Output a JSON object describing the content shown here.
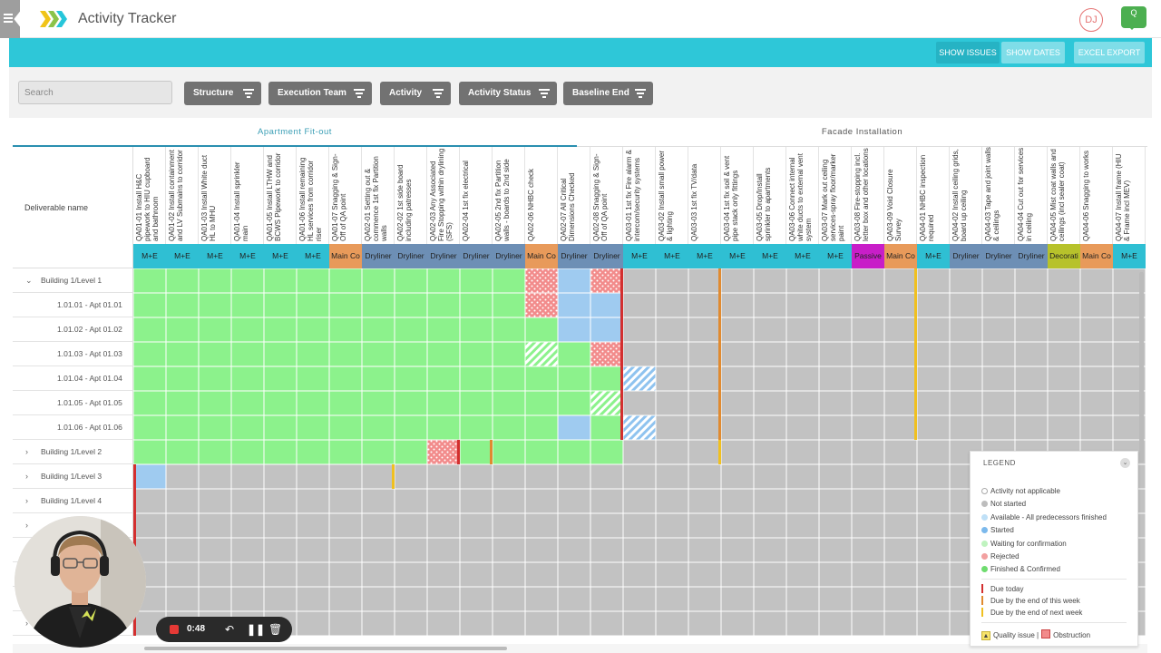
{
  "app": {
    "title": "Activity Tracker",
    "user_initials": "DJ",
    "chat_badge": "Q"
  },
  "toolbar": {
    "show_issues": "SHOW ISSUES",
    "show_dates": "SHOW DATES",
    "excel_export": "EXCEL EXPORT"
  },
  "filters": {
    "search_placeholder": "Search",
    "items": [
      "Structure",
      "Execution Team",
      "Activity",
      "Activity Status",
      "Baseline End"
    ]
  },
  "tabs": [
    "Apartment Fit-out",
    "Facade Installation"
  ],
  "grid": {
    "deliverable_header": "Deliverable name",
    "columns": [
      {
        "name": "QA01-01 Install H&C pipework to HIU cupboard and bathroom",
        "team": "M+E",
        "color": "#2fbfd3"
      },
      {
        "name": "QA01-02 Install containment and LV Submains to corridor",
        "team": "M+E",
        "color": "#2fbfd3"
      },
      {
        "name": "QA01-03 Install White duct HL to MHU",
        "team": "M+E",
        "color": "#2fbfd3"
      },
      {
        "name": "QA01-04 Install sprinkler main",
        "team": "M+E",
        "color": "#2fbfd3"
      },
      {
        "name": "QA01-05 Install LTHW and BCWS Pipework to corridor",
        "team": "M+E",
        "color": "#2fbfd3"
      },
      {
        "name": "QA01-06 Install remaining HL services from corridor riser",
        "team": "M+E",
        "color": "#2fbfd3"
      },
      {
        "name": "QA01-07 Snagging & Sign-Off of QA point",
        "team": "Main Co",
        "color": "#e89a5a"
      },
      {
        "name": "QA02-01 Setting out & commence 1st fix Partition walls",
        "team": "Dryliner",
        "color": "#6d8fb5"
      },
      {
        "name": "QA02-02 1st side board including patresses",
        "team": "Dryliner",
        "color": "#6d8fb5"
      },
      {
        "name": "QA02-03 Any Associated Fire Stopping within drylining (SFS)",
        "team": "Dryliner",
        "color": "#6d8fb5"
      },
      {
        "name": "QA02-04 1st fix electrical",
        "team": "Dryliner",
        "color": "#6d8fb5"
      },
      {
        "name": "QA02-05 2nd fix Partition walls - boards to 2nd side",
        "team": "Dryliner",
        "color": "#6d8fb5"
      },
      {
        "name": "QA02-06 NHBC check",
        "team": "Main Co",
        "color": "#e89a5a"
      },
      {
        "name": "QA02-07 All Critical Dimensions Checked",
        "team": "Dryliner",
        "color": "#6d8fb5"
      },
      {
        "name": "QA02-08 Snagging & Sign-Off of QA point",
        "team": "Dryliner",
        "color": "#6d8fb5"
      },
      {
        "name": "QA03-01 1st fix Fire alarm & intercom/security systems",
        "team": "M+E",
        "color": "#2fbfd3"
      },
      {
        "name": "QA03-02 Install small power & lighting",
        "team": "M+E",
        "color": "#2fbfd3"
      },
      {
        "name": "QA03-03 1st fix TV/data",
        "team": "M+E",
        "color": "#2fbfd3"
      },
      {
        "name": "QA03-04 1st fix soil & vent pipe stack only fittings",
        "team": "M+E",
        "color": "#2fbfd3"
      },
      {
        "name": "QA03-05 Drop/Install sprinkler to apartments",
        "team": "M+E",
        "color": "#2fbfd3"
      },
      {
        "name": "QA03-06 Connect internal white ducts to external vent system",
        "team": "M+E",
        "color": "#2fbfd3"
      },
      {
        "name": "QA03-07 Mark out ceiling services-spray floor/marker paint",
        "team": "M+E",
        "color": "#2fbfd3"
      },
      {
        "name": "QA03-08 Fire-stopping incl. letter box and other locations",
        "team": "Passive",
        "color": "#c81ec8"
      },
      {
        "name": "QA03-09 Void Closure Survey",
        "team": "Main Co",
        "color": "#e89a5a"
      },
      {
        "name": "QA04-01 NHBC inspection required",
        "team": "M+E",
        "color": "#2fbfd3"
      },
      {
        "name": "QA04-02 Install ceiling grids, board up ceiling",
        "team": "Dryliner",
        "color": "#6d8fb5"
      },
      {
        "name": "QA04-03 Tape and joint walls & ceilings",
        "team": "Dryliner",
        "color": "#6d8fb5"
      },
      {
        "name": "QA04-04 Cut out for services in ceiling",
        "team": "Dryliner",
        "color": "#6d8fb5"
      },
      {
        "name": "QA04-05 Mist coat walls and ceilings (incl sealer coat)",
        "team": "Decorati",
        "color": "#b7c22b"
      },
      {
        "name": "QA04-06 Snagging to works",
        "team": "Main Co",
        "color": "#e89a5a"
      },
      {
        "name": "QA04-07 Install frame (HIU & Frame incl MEV)",
        "team": "M+E",
        "color": "#2fbfd3"
      }
    ],
    "rows": [
      {
        "label": "Building 1/Level 1",
        "indent": 0,
        "chevron": "down"
      },
      {
        "label": "1.01.01 - Apt 01.01",
        "indent": 1,
        "chevron": ""
      },
      {
        "label": "1.01.02 - Apt 01.02",
        "indent": 1,
        "chevron": ""
      },
      {
        "label": "1.01.03 - Apt 01.03",
        "indent": 1,
        "chevron": ""
      },
      {
        "label": "1.01.04 - Apt 01.04",
        "indent": 1,
        "chevron": ""
      },
      {
        "label": "1.01.05 - Apt 01.05",
        "indent": 1,
        "chevron": ""
      },
      {
        "label": "1.01.06 - Apt 01.06",
        "indent": 1,
        "chevron": ""
      },
      {
        "label": "Building 1/Level 2",
        "indent": 0,
        "chevron": "right"
      },
      {
        "label": "Building 1/Level 3",
        "indent": 0,
        "chevron": "right"
      },
      {
        "label": "Building 1/Level 4",
        "indent": 0,
        "chevron": "right"
      },
      {
        "label": "",
        "indent": 0,
        "chevron": "right"
      },
      {
        "label": "",
        "indent": 0,
        "chevron": ""
      },
      {
        "label": "",
        "indent": 0,
        "chevron": ""
      },
      {
        "label": "",
        "indent": 0,
        "chevron": ""
      },
      {
        "label": "",
        "indent": 0,
        "chevron": "right"
      }
    ],
    "status_colors": {
      "G": "#8cf28c",
      "B": "#9fcbf0",
      "N": "#c2c2c2",
      "R": "#e8a0a0",
      "W": "#d9f7d9",
      "S": "#c3dcf5"
    },
    "cells": [
      "GGGGGGGGGGGGRBRNNNNNNNNNNNNNNNN",
      "GGGGGGGGGGGGRBBNNNNNNNNNNNNNNNN",
      "GGGGGGGGGGGGGBBNNNNNNNNNNNNNNNN",
      "GGGGGGGGGGGGWGRNNNNNNNNNNNNNNNN",
      "GGGGGGGGGGGGGGGSNNNNNNNNNNNNNNN",
      "GGGGGGGGGGGGGGWNNNNNNNNNNNNNNNN",
      "GGGGGGGGGGGGGBGSNNNNNNNNNNNNNNN",
      "GGGGGGGGGRGGGGGNNNNNNNNNNNNNNNN",
      "BNNNNNNNNNNNNNNNNNNNNNNNNNNNNNN",
      "NNNNNNNNNNNNNNNNNNNNNNNNNNNNNNN",
      "NNNNNNNNNNNNNNNNNNNNNNNNNNNNNNN",
      "NNNNNNNNNNNNNNNNNNNNNNNNNNNNNNN",
      "NNNNNNNNNNNNNNNNNNNNNNNNNNNNNNN",
      "NNNNNNNNNNNNNNNNNNNNNNNNNNNNNNN",
      "NNNNNNNNNNNNNNNNNNNNNNNNNNNNNNN"
    ],
    "due_markers": [
      {
        "row": 0,
        "col": 14,
        "color": "#d32f2f"
      },
      {
        "row": 1,
        "col": 14,
        "color": "#d32f2f"
      },
      {
        "row": 2,
        "col": 14,
        "color": "#d32f2f"
      },
      {
        "row": 3,
        "col": 14,
        "color": "#d32f2f"
      },
      {
        "row": 4,
        "col": 14,
        "color": "#d32f2f"
      },
      {
        "row": 5,
        "col": 14,
        "color": "#d32f2f"
      },
      {
        "row": 6,
        "col": 14,
        "color": "#d32f2f"
      },
      {
        "row": 7,
        "col": 9,
        "color": "#d32f2f"
      },
      {
        "row": 0,
        "col": 17,
        "color": "#e08a30"
      },
      {
        "row": 1,
        "col": 17,
        "color": "#e08a30"
      },
      {
        "row": 2,
        "col": 17,
        "color": "#e08a30"
      },
      {
        "row": 3,
        "col": 17,
        "color": "#e08a30"
      },
      {
        "row": 4,
        "col": 17,
        "color": "#e08a30"
      },
      {
        "row": 5,
        "col": 17,
        "color": "#e08a30"
      },
      {
        "row": 6,
        "col": 17,
        "color": "#e08a30"
      },
      {
        "row": 7,
        "col": 10,
        "color": "#e08a30"
      },
      {
        "row": 0,
        "col": 23,
        "color": "#f0c020"
      },
      {
        "row": 1,
        "col": 23,
        "color": "#f0c020"
      },
      {
        "row": 2,
        "col": 23,
        "color": "#f0c020"
      },
      {
        "row": 3,
        "col": 23,
        "color": "#f0c020"
      },
      {
        "row": 4,
        "col": 23,
        "color": "#f0c020"
      },
      {
        "row": 5,
        "col": 23,
        "color": "#f0c020"
      },
      {
        "row": 6,
        "col": 23,
        "color": "#f0c020"
      },
      {
        "row": 7,
        "col": 17,
        "color": "#f0c020"
      },
      {
        "row": 8,
        "col": 7,
        "color": "#f0c020"
      }
    ]
  },
  "legend": {
    "title": "LEGEND",
    "items": [
      {
        "label": "Activity not applicable",
        "color": "#ffffff"
      },
      {
        "label": "Not started",
        "color": "#bdbdbd"
      },
      {
        "label": "Available - All predecessors finished",
        "color": "#bfe0f7"
      },
      {
        "label": "Started",
        "color": "#7cb9ec"
      },
      {
        "label": "Waiting for confirmation",
        "color": "#bff3bf"
      },
      {
        "label": "Rejected",
        "color": "#f2a0a0"
      },
      {
        "label": "Finished & Confirmed",
        "color": "#6fdc6f"
      }
    ],
    "due": [
      {
        "label": "Due today",
        "color": "#d32f2f"
      },
      {
        "label": "Due by the end of this week",
        "color": "#e08a30"
      },
      {
        "label": "Due by the end of next week",
        "color": "#f0c020"
      }
    ],
    "footer": {
      "quality": "Quality issue |",
      "obstruction": "Obstruction"
    }
  },
  "recorder": {
    "time": "0:48"
  }
}
